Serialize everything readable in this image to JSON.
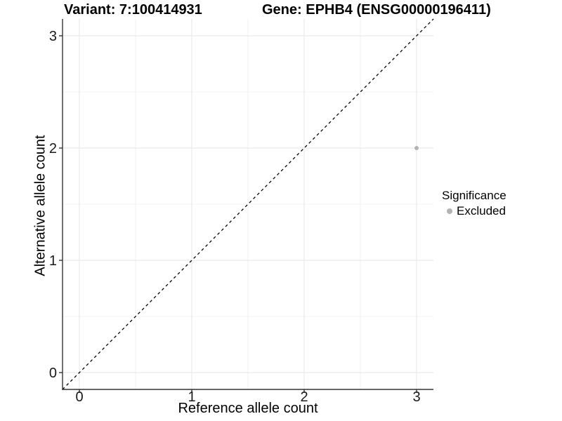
{
  "chart_data": {
    "type": "scatter",
    "title_variant": "Variant: 7:100414931",
    "title_gene": "Gene: EPHB4 (ENSG00000196411)",
    "xlabel": "Reference allele count",
    "ylabel": "Alternative allele count",
    "xlim": [
      -0.15,
      3.15
    ],
    "ylim": [
      -0.15,
      3.15
    ],
    "x_ticks": [
      0,
      1,
      2,
      3
    ],
    "y_ticks": [
      0,
      1,
      2,
      3
    ],
    "x_minor_ticks": [
      0.5,
      1.5,
      2.5
    ],
    "y_minor_ticks": [
      0.5,
      1.5,
      2.5
    ],
    "grid": "major+minor",
    "series": [
      {
        "name": "Excluded",
        "marker": "circle",
        "color": "#b3b3b3",
        "points": [
          {
            "x": 3,
            "y": 2
          }
        ]
      }
    ],
    "reference_line": {
      "slope": 1,
      "intercept": 0,
      "style": "dashed",
      "color": "#000000"
    },
    "legend": {
      "title": "Significance",
      "position": "right",
      "items": [
        {
          "label": "Excluded",
          "color": "#b3b3b3",
          "marker": "circle"
        }
      ]
    },
    "colors": {
      "background": "#ffffff",
      "grid_major": "#e5e5e5",
      "grid_minor": "#f2f2f2",
      "axis_line": "#333333",
      "tick_text": "#1a1a1a",
      "point": "#b3b3b3"
    }
  }
}
